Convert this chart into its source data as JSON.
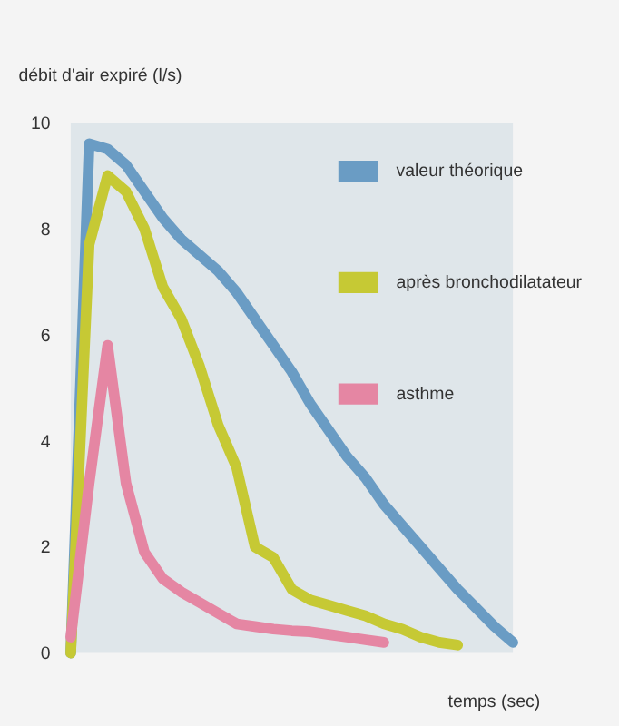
{
  "chart_data": {
    "type": "line",
    "xlabel": "temps (sec)",
    "ylabel": "débit d'air expiré (l/s)",
    "categories": [
      null,
      null,
      null,
      null,
      null,
      null,
      null,
      null,
      null,
      null,
      null,
      null,
      null,
      null,
      null,
      null,
      null,
      null,
      null,
      null,
      null,
      null,
      null,
      null,
      null
    ],
    "series": [
      {
        "name": "valeur théorique",
        "color": "#6a9cc4",
        "values": [
          0,
          9.6,
          9.5,
          9.2,
          8.7,
          8.2,
          7.8,
          7.5,
          7.2,
          6.8,
          6.3,
          5.8,
          5.3,
          4.7,
          4.2,
          3.7,
          3.3,
          2.8,
          2.4,
          2.0,
          1.6,
          1.2,
          0.85,
          0.5,
          0.2
        ]
      },
      {
        "name": "après bronchodilatateur",
        "color": "#c6c934",
        "values": [
          0,
          7.7,
          9.0,
          8.7,
          8.0,
          6.9,
          6.3,
          5.4,
          4.3,
          3.5,
          2.0,
          1.8,
          1.2,
          1.0,
          0.9,
          0.8,
          0.7,
          0.55,
          0.45,
          0.3,
          0.2,
          0.15,
          null,
          null,
          null
        ]
      },
      {
        "name": "asthme",
        "color": "#e586a3",
        "values": [
          0.3,
          3.2,
          5.8,
          3.2,
          1.9,
          1.4,
          1.15,
          0.95,
          0.75,
          0.55,
          0.5,
          0.45,
          0.42,
          0.4,
          0.35,
          0.3,
          0.25,
          0.2,
          null,
          null,
          null,
          null,
          null,
          null,
          null
        ]
      }
    ],
    "ylim": [
      0,
      10
    ],
    "yticks": [
      0,
      2,
      4,
      6,
      8,
      10
    ],
    "grid": false,
    "legend": "top right",
    "tick_labels": "y",
    "line_style": "solid",
    "marker": "none"
  }
}
